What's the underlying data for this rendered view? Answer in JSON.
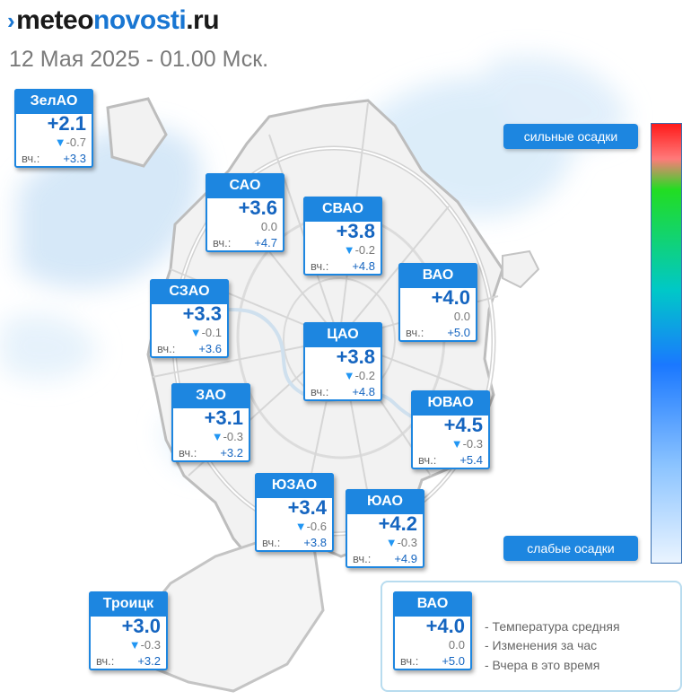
{
  "header": {
    "logo_prefix": "meteo",
    "logo_accent": "novosti",
    "logo_suffix": ".ru",
    "subtitle": "12 Мая 2025 - 01.00 Мск."
  },
  "districts": [
    {
      "name": "ЗелАО",
      "temp": "+2.1",
      "delta_icon": "triangle-down-icon",
      "delta": "-0.7",
      "yesterday_label": "вч.:",
      "yesterday": "+3.3"
    },
    {
      "name": "САО",
      "temp": "+3.6",
      "delta_icon": "",
      "delta": "0.0",
      "yesterday_label": "вч.:",
      "yesterday": "+4.7"
    },
    {
      "name": "СВАО",
      "temp": "+3.8",
      "delta_icon": "triangle-down-icon",
      "delta": "-0.2",
      "yesterday_label": "вч.:",
      "yesterday": "+4.8"
    },
    {
      "name": "ВАО",
      "temp": "+4.0",
      "delta_icon": "",
      "delta": "0.0",
      "yesterday_label": "вч.:",
      "yesterday": "+5.0"
    },
    {
      "name": "СЗАО",
      "temp": "+3.3",
      "delta_icon": "triangle-down-icon",
      "delta": "-0.1",
      "yesterday_label": "вч.:",
      "yesterday": "+3.6"
    },
    {
      "name": "ЦАО",
      "temp": "+3.8",
      "delta_icon": "triangle-down-icon",
      "delta": "-0.2",
      "yesterday_label": "вч.:",
      "yesterday": "+4.8"
    },
    {
      "name": "ЗАО",
      "temp": "+3.1",
      "delta_icon": "triangle-down-icon",
      "delta": "-0.3",
      "yesterday_label": "вч.:",
      "yesterday": "+3.2"
    },
    {
      "name": "ЮВАО",
      "temp": "+4.5",
      "delta_icon": "triangle-down-icon",
      "delta": "-0.3",
      "yesterday_label": "вч.:",
      "yesterday": "+5.4"
    },
    {
      "name": "ЮЗАО",
      "temp": "+3.4",
      "delta_icon": "triangle-down-icon",
      "delta": "-0.6",
      "yesterday_label": "вч.:",
      "yesterday": "+3.8"
    },
    {
      "name": "ЮАО",
      "temp": "+4.2",
      "delta_icon": "triangle-down-icon",
      "delta": "-0.3",
      "yesterday_label": "вч.:",
      "yesterday": "+4.9"
    },
    {
      "name": "Троицк",
      "temp": "+3.0",
      "delta_icon": "triangle-down-icon",
      "delta": "-0.3",
      "yesterday_label": "вч.:",
      "yesterday": "+3.2"
    }
  ],
  "scale": {
    "top_label": "сильные осадки",
    "bottom_label": "слабые осадки",
    "colors": [
      "#ff1a1a",
      "#22dd22",
      "#00c8c8",
      "#1a78ff",
      "#eaf4ff"
    ]
  },
  "legend": {
    "sample": {
      "name": "ВАО",
      "temp": "+4.0",
      "delta": "0.0",
      "yesterday_label": "вч.:",
      "yesterday": "+5.0"
    },
    "lines": [
      "- Температура средняя",
      "- Изменения за час",
      "- Вчера в это время"
    ]
  },
  "colors": {
    "accent": "#1d86e0",
    "temp_text": "#1565c0",
    "precip_light": "#cfe6f8"
  }
}
